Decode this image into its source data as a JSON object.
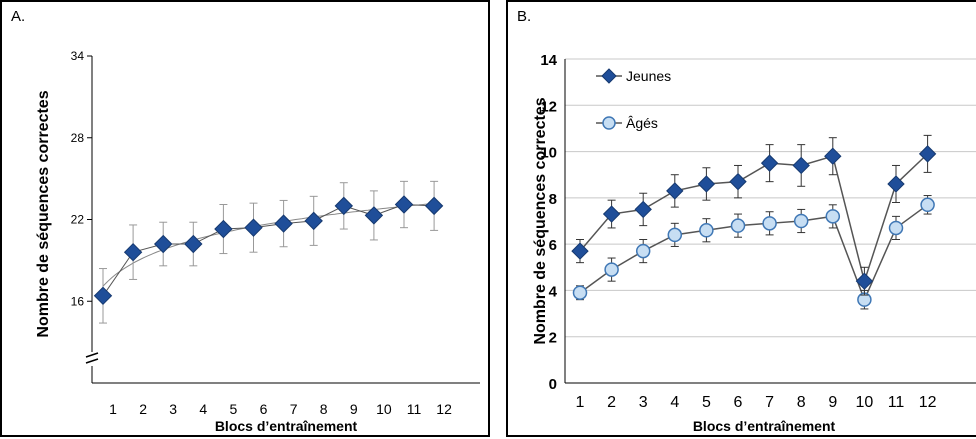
{
  "colors": {
    "jeunes": "#1f4e99",
    "ages_fill": "#c7def3",
    "ages_stroke": "#3f77b5",
    "axis": "#000000",
    "grid": "#c8c8c8",
    "line": "#555555"
  },
  "panel_a": {
    "letter": "A."
  },
  "panel_b": {
    "letter": "B."
  },
  "chart_data": [
    {
      "type": "line",
      "panel": "A.",
      "xlabel": "Blocs d’entraînement",
      "ylabel": "Nombre de séquences correctes",
      "x": [
        1,
        2,
        3,
        4,
        5,
        6,
        7,
        8,
        9,
        10,
        11,
        12
      ],
      "ylim": [
        10,
        34
      ],
      "yticks": [
        16,
        22,
        28,
        34
      ],
      "axis_break": true,
      "grid": false,
      "series": [
        {
          "values": [
            16.4,
            19.6,
            20.2,
            20.2,
            21.3,
            21.4,
            21.7,
            21.9,
            23.0,
            22.3,
            23.1,
            23.0
          ],
          "error": [
            2.0,
            2.0,
            1.6,
            1.6,
            1.8,
            1.8,
            1.7,
            1.8,
            1.7,
            1.8,
            1.7,
            1.8
          ],
          "marker": "diamond"
        }
      ],
      "trend_line": "logarithmic fit"
    },
    {
      "type": "line",
      "panel": "B.",
      "xlabel": "Blocs d’entraînement",
      "ylabel": "Nombre de séquences correctes",
      "x": [
        1,
        2,
        3,
        4,
        5,
        6,
        7,
        8,
        9,
        10,
        11,
        12
      ],
      "ylim": [
        0,
        14
      ],
      "yticks": [
        0,
        2,
        4,
        6,
        8,
        10,
        12,
        14
      ],
      "grid": true,
      "legend_position": "top-left",
      "series": [
        {
          "name": "Jeunes",
          "values": [
            5.7,
            7.3,
            7.5,
            8.3,
            8.6,
            8.7,
            9.5,
            9.4,
            9.8,
            4.4,
            8.6,
            9.9
          ],
          "error": [
            0.5,
            0.6,
            0.7,
            0.7,
            0.7,
            0.7,
            0.8,
            0.9,
            0.8,
            0.6,
            0.8,
            0.8
          ],
          "marker": "diamond"
        },
        {
          "name": "Âgés",
          "values": [
            3.9,
            4.9,
            5.7,
            6.4,
            6.6,
            6.8,
            6.9,
            7.0,
            7.2,
            3.6,
            6.7,
            7.7
          ],
          "error": [
            0.3,
            0.5,
            0.5,
            0.5,
            0.5,
            0.5,
            0.5,
            0.5,
            0.5,
            0.4,
            0.5,
            0.4
          ],
          "marker": "circle"
        }
      ]
    }
  ]
}
